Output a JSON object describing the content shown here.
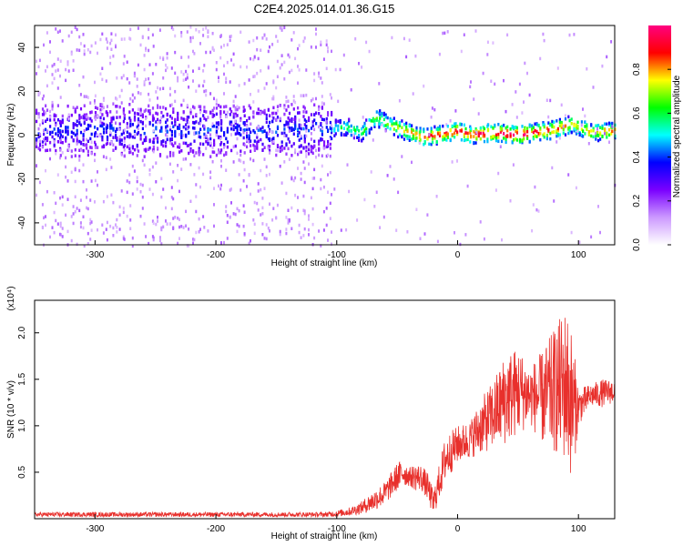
{
  "title": "C2E4.2025.014.01.36.G15",
  "colors": {
    "snr_line": "#e8302c",
    "axis": "#000000",
    "background": "#ffffff"
  },
  "chart_data": [
    {
      "type": "heatmap",
      "name": "spectrogram",
      "xlabel": "Height of straight line (km)",
      "ylabel": "Frequency (Hz)",
      "xlim": [
        -350,
        130
      ],
      "ylim": [
        -50,
        50
      ],
      "x_ticks": [
        -300,
        -200,
        -100,
        0,
        100
      ],
      "y_ticks": [
        -40,
        -20,
        0,
        20,
        40
      ],
      "colorbar": {
        "label": "Normalized spectral amplitude",
        "range": [
          0,
          1
        ],
        "ticks": [
          "0.0",
          "0.2",
          "0.4",
          "0.6",
          "0.8"
        ],
        "colormap": [
          "#ffffff",
          "#cc99ff",
          "#7a00ff",
          "#0000ff",
          "#00ffff",
          "#00ff00",
          "#ffff00",
          "#ff0000",
          "#ff0080"
        ]
      },
      "ridge": {
        "description_free": true,
        "center_freq_points": [
          [
            -350,
            2
          ],
          [
            -300,
            2
          ],
          [
            -250,
            2
          ],
          [
            -200,
            2
          ],
          [
            -150,
            2
          ],
          [
            -105,
            2
          ],
          [
            -95,
            4
          ],
          [
            -80,
            1
          ],
          [
            -68,
            8
          ],
          [
            -55,
            4
          ],
          [
            -40,
            1
          ],
          [
            -30,
            -1
          ],
          [
            -15,
            0
          ],
          [
            0,
            2
          ],
          [
            10,
            0
          ],
          [
            30,
            1
          ],
          [
            50,
            0
          ],
          [
            75,
            2
          ],
          [
            95,
            5
          ],
          [
            110,
            1
          ],
          [
            130,
            2
          ]
        ],
        "amplitude_points": [
          [
            -350,
            0.25
          ],
          [
            -105,
            0.28
          ],
          [
            -100,
            0.45
          ],
          [
            -70,
            0.55
          ],
          [
            -40,
            0.7
          ],
          [
            -20,
            0.8
          ],
          [
            0,
            0.8
          ],
          [
            20,
            0.85
          ],
          [
            50,
            0.9
          ],
          [
            80,
            0.75
          ],
          [
            100,
            0.65
          ],
          [
            130,
            0.75
          ]
        ]
      }
    },
    {
      "type": "line",
      "name": "snr",
      "xlabel": "Height of straight line (km)",
      "ylabel": "SNR (10 * v/v)",
      "y_multiplier": "(x10⁴)",
      "xlim": [
        -350,
        130
      ],
      "ylim": [
        0,
        2.35
      ],
      "x_ticks": [
        -300,
        -200,
        -100,
        0,
        100
      ],
      "y_ticks": [
        "0.5",
        "1.0",
        "1.5",
        "2.0"
      ],
      "envelope": {
        "x": [
          -350,
          -110,
          -100,
          -90,
          -80,
          -70,
          -60,
          -50,
          -45,
          -40,
          -35,
          -30,
          -25,
          -20,
          -10,
          0,
          10,
          20,
          30,
          40,
          50,
          60,
          70,
          80,
          90,
          95,
          100,
          110,
          120,
          130
        ],
        "low": [
          0.02,
          0.02,
          0.02,
          0.03,
          0.05,
          0.08,
          0.15,
          0.3,
          0.35,
          0.35,
          0.3,
          0.3,
          0.2,
          0.02,
          0.4,
          0.6,
          0.65,
          0.7,
          0.75,
          0.8,
          0.9,
          1.0,
          0.8,
          0.7,
          0.6,
          0.4,
          1.0,
          1.2,
          1.2,
          1.25
        ],
        "high": [
          0.07,
          0.07,
          0.09,
          0.12,
          0.18,
          0.3,
          0.4,
          0.6,
          0.65,
          0.55,
          0.6,
          0.58,
          0.5,
          0.3,
          0.9,
          1.0,
          1.05,
          1.3,
          1.5,
          1.8,
          1.85,
          1.65,
          1.8,
          2.05,
          2.3,
          2.0,
          1.4,
          1.45,
          1.5,
          1.5
        ]
      }
    }
  ]
}
